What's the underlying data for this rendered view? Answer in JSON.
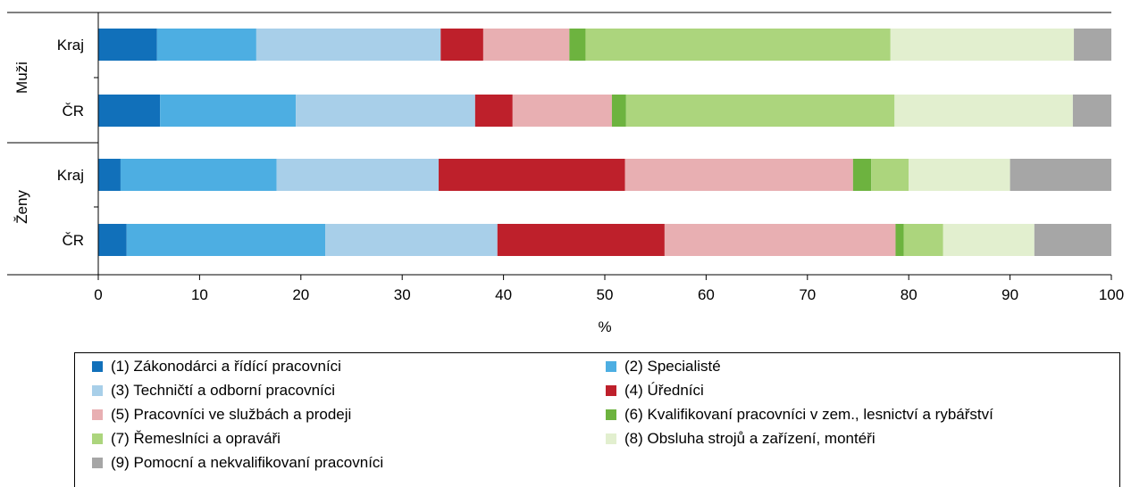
{
  "chart_data": {
    "type": "bar",
    "orientation": "horizontal",
    "stacked": true,
    "groups": [
      {
        "label": "Muži",
        "categories": [
          "Kraj",
          "ČR"
        ]
      },
      {
        "label": "Ženy",
        "categories": [
          "Kraj",
          "ČR"
        ]
      }
    ],
    "categories": [
      "Muži – Kraj",
      "Muži – ČR",
      "Ženy – Kraj",
      "Ženy – ČR"
    ],
    "xlabel": "%",
    "xlim": [
      0,
      100
    ],
    "xticks": [
      "0",
      "10",
      "20",
      "30",
      "40",
      "50",
      "60",
      "70",
      "80",
      "90",
      "100"
    ],
    "grid": false,
    "legend_position": "bottom",
    "series": [
      {
        "name": "(1) Zákonodárci a řídící pracovníci",
        "color": "#1170BA",
        "values": [
          5.8,
          6.1,
          2.2,
          2.8
        ]
      },
      {
        "name": "(2) Specialisté",
        "color": "#4DAEE2",
        "values": [
          9.8,
          13.4,
          15.4,
          19.6
        ]
      },
      {
        "name": "(3) Techničtí a odborní pracovníci",
        "color": "#A8CFE9",
        "values": [
          18.2,
          17.7,
          16.0,
          17.0
        ]
      },
      {
        "name": "(4) Úředníci",
        "color": "#BE202B",
        "values": [
          4.2,
          3.7,
          18.4,
          16.5
        ]
      },
      {
        "name": "(5) Pracovníci ve službách a prodeji",
        "color": "#E8AFB2",
        "values": [
          8.5,
          9.8,
          22.5,
          22.8
        ]
      },
      {
        "name": "(6) Kvalifikovaní pracovníci v zem., lesnictví a rybářství",
        "color": "#6DB33F",
        "values": [
          1.6,
          1.4,
          1.8,
          0.8
        ]
      },
      {
        "name": "(7) Řemeslníci a opraváři",
        "color": "#ACD57D",
        "values": [
          30.1,
          26.5,
          3.7,
          3.9
        ]
      },
      {
        "name": "(8) Obsluha strojů a zařízení, montéři",
        "color": "#E2EFCF",
        "values": [
          18.1,
          17.6,
          10.0,
          9.0
        ]
      },
      {
        "name": "(9) Pomocní a nekvalifikovaní pracovníci",
        "color": "#A6A6A6",
        "values": [
          3.7,
          3.8,
          10.0,
          7.6
        ]
      }
    ]
  }
}
